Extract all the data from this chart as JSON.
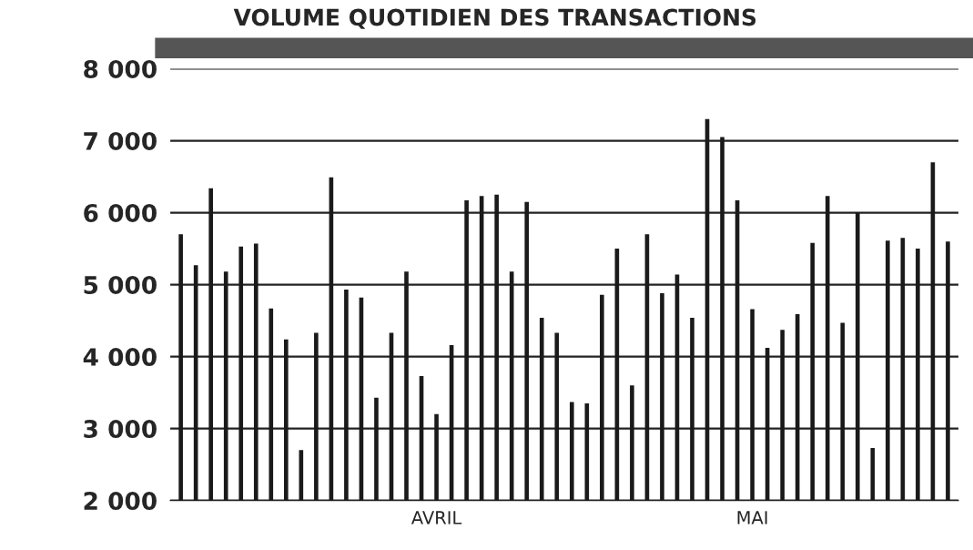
{
  "chart_data": {
    "type": "bar",
    "title": "VOLUME QUOTIDIEN DES TRANSACTIONS",
    "categories": [
      null,
      null,
      null,
      null,
      null,
      null,
      null,
      null,
      null,
      null,
      null,
      null,
      null,
      null,
      null,
      null,
      null,
      "AVRIL",
      null,
      null,
      null,
      null,
      null,
      null,
      null,
      null,
      null,
      null,
      null,
      null,
      null,
      null,
      null,
      null,
      null,
      null,
      null,
      null,
      "MAI",
      null,
      null,
      null,
      null,
      null,
      null,
      null,
      null,
      null,
      null,
      null,
      null,
      null
    ],
    "values": [
      5700,
      5270,
      6340,
      5180,
      5530,
      5570,
      4670,
      4240,
      2700,
      4330,
      6490,
      4930,
      4820,
      3430,
      4330,
      5180,
      3730,
      3200,
      4160,
      6170,
      6230,
      6250,
      5180,
      6150,
      4540,
      4330,
      3370,
      3350,
      4860,
      5500,
      3600,
      5700,
      4880,
      5140,
      4540,
      7300,
      7050,
      6170,
      4660,
      4120,
      4370,
      4590,
      5580,
      6230,
      4470,
      6000,
      2730,
      5610,
      5650,
      5500,
      6700,
      5600
    ],
    "color": "#1a1a1a",
    "ylim": [
      2000,
      8000
    ],
    "yticks": [
      {
        "value": 2000,
        "label": "2 000"
      },
      {
        "value": 3000,
        "label": "3 000"
      },
      {
        "value": 4000,
        "label": "4 000"
      },
      {
        "value": 5000,
        "label": "5 000"
      },
      {
        "value": 6000,
        "label": "6 000"
      },
      {
        "value": 7000,
        "label": "7 000"
      },
      {
        "value": 8000,
        "label": "8 000"
      }
    ],
    "grid": "y",
    "legend": false
  }
}
